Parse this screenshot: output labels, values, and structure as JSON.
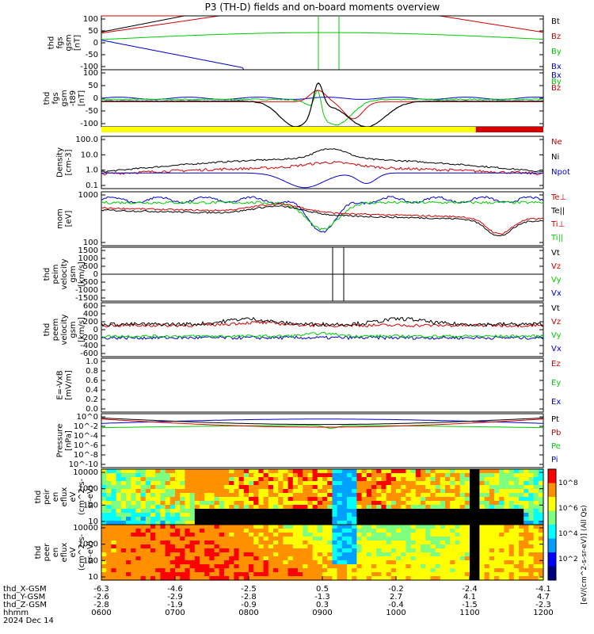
{
  "title": "P3 (TH-D) fields and on-board moments overview",
  "date_label": "2024 Dec 14",
  "colors": {
    "black": "#000000",
    "red": "#d40000",
    "green": "#00cc00",
    "blue": "#0000cc",
    "yellow": "#ffff00"
  },
  "ephemeris": {
    "rows": [
      {
        "name": "thd_X-GSM",
        "values": [
          "-6.3",
          "-4.6",
          "-2.5",
          "0.5",
          "-0.2",
          "-2.4",
          "-4.1"
        ]
      },
      {
        "name": "thd_Y-GSM",
        "values": [
          "-2.6",
          "-2.9",
          "-2.8",
          "-1.3",
          "2.7",
          "4.1",
          "4.7"
        ]
      },
      {
        "name": "thd_Z-GSM",
        "values": [
          "-2.8",
          "-1.9",
          "-0.9",
          "0.3",
          "-0.4",
          "-1.5",
          "-2.3"
        ]
      },
      {
        "name": "hhmm",
        "values": [
          "0600",
          "0700",
          "0800",
          "0900",
          "1000",
          "1100",
          "1200"
        ]
      }
    ]
  },
  "chart_data": [
    {
      "type": "line",
      "id": "fgs",
      "ylabel": [
        "thd",
        "fgs",
        "gsm",
        "[nT]"
      ],
      "ylim": [
        -100,
        100
      ],
      "yticks": [
        "100",
        "50",
        "0",
        "-50",
        "-100"
      ],
      "series": [
        {
          "name": "Bt",
          "color": "black"
        },
        {
          "name": "Bz",
          "color": "red"
        },
        {
          "name": "By",
          "color": "green"
        },
        {
          "name": "Bx",
          "color": "blue"
        }
      ]
    },
    {
      "type": "line",
      "id": "fgs_t89",
      "ylabel": [
        "thd",
        "fgs",
        "gsm",
        "-t89",
        "[nT]"
      ],
      "ylim": [
        -120,
        120
      ],
      "yticks": [
        "100",
        "50",
        "0",
        "-50",
        "-100"
      ],
      "series": [
        {
          "name": "Bx",
          "color": "blue"
        },
        {
          "name": "By",
          "color": "green"
        },
        {
          "name": "Bz",
          "color": "red"
        }
      ]
    },
    {
      "type": "bar",
      "id": "flag",
      "segments": [
        {
          "from": "0600",
          "to": "1105",
          "color": "yellow"
        },
        {
          "from": "1105",
          "to": "1200",
          "color": "red"
        }
      ]
    },
    {
      "type": "line",
      "id": "density",
      "ylabel": [
        "Density",
        "[cm-3]"
      ],
      "log": true,
      "ylim": [
        0.05,
        100
      ],
      "yticks": [
        "100.0",
        "10.0",
        "1.0",
        "0.1"
      ],
      "series": [
        {
          "name": "Ne",
          "color": "red"
        },
        {
          "name": "Ni",
          "color": "black"
        },
        {
          "name": "Npot",
          "color": "blue"
        }
      ]
    },
    {
      "type": "line",
      "id": "temperature",
      "ylabel": [
        "mom",
        "[eV]"
      ],
      "log": true,
      "ylim": [
        20,
        5000
      ],
      "yticks": [
        "1000",
        "100"
      ],
      "series": [
        {
          "name": "Te⊥",
          "color": "red"
        },
        {
          "name": "Te||",
          "color": "black"
        },
        {
          "name": "Ti⊥",
          "color": "red"
        },
        {
          "name": "Ti||",
          "color": "green"
        }
      ]
    },
    {
      "type": "line",
      "id": "peim_velocity",
      "ylabel": [
        "thd",
        "peim",
        "velocity",
        "gsm",
        "[km/s]"
      ],
      "ylim": [
        -2000,
        1500
      ],
      "yticks": [
        "1500",
        "1000",
        "500",
        "0",
        "-500",
        "-1000",
        "-1500"
      ],
      "series": [
        {
          "name": "Vt",
          "color": "black"
        },
        {
          "name": "Vz",
          "color": "red"
        },
        {
          "name": "Vy",
          "color": "green"
        },
        {
          "name": "Vx",
          "color": "blue"
        }
      ]
    },
    {
      "type": "line",
      "id": "peem_velocity",
      "ylabel": [
        "thd",
        "peem",
        "velocity",
        "gsm",
        "[km/s]"
      ],
      "ylim": [
        -600,
        600
      ],
      "yticks": [
        "600",
        "400",
        "200",
        "0",
        "-200",
        "-400",
        "-600"
      ],
      "series": [
        {
          "name": "Vt",
          "color": "black"
        },
        {
          "name": "Vz",
          "color": "red"
        },
        {
          "name": "Vy",
          "color": "green"
        },
        {
          "name": "Vx",
          "color": "blue"
        }
      ]
    },
    {
      "type": "line",
      "id": "efield",
      "ylabel": [
        "E=-VxB",
        "[mV/m]"
      ],
      "ylim": [
        0,
        1
      ],
      "yticks": [
        "1.0",
        "0.8",
        "0.6",
        "0.4",
        "0.2",
        "0.0"
      ],
      "series": [
        {
          "name": "Ez",
          "color": "red"
        },
        {
          "name": "Ey",
          "color": "green"
        },
        {
          "name": "Ex",
          "color": "blue"
        }
      ]
    },
    {
      "type": "line",
      "id": "pressure",
      "ylabel": [
        "Pressure",
        "[nPa]"
      ],
      "log": true,
      "ylim": [
        1e-10,
        10
      ],
      "yticks": [
        "10^0",
        "10^-2",
        "10^-4",
        "10^-6",
        "10^-8",
        "10^-10"
      ],
      "series": [
        {
          "name": "Pt",
          "color": "black"
        },
        {
          "name": "Pb",
          "color": "red"
        },
        {
          "name": "Pe",
          "color": "green"
        },
        {
          "name": "Pi",
          "color": "blue"
        }
      ]
    },
    {
      "type": "heatmap",
      "id": "peir",
      "ylabel": [
        "thd",
        "peir",
        "en",
        "eflux",
        "eV",
        "(cm^2-s-",
        "sr-eV)"
      ],
      "log": true,
      "ylim": [
        5,
        30000
      ],
      "yticks": [
        "10000",
        "1000",
        "100",
        "10"
      ]
    },
    {
      "type": "heatmap",
      "id": "peer",
      "ylabel": [
        "thd",
        "peer",
        "en",
        "eflux",
        "eV",
        "(cm^2-s-",
        "sr-eV)"
      ],
      "log": true,
      "ylim": [
        5,
        30000
      ],
      "yticks": [
        "10000",
        "1000",
        "100",
        "10"
      ]
    }
  ],
  "colorbar": {
    "ticks": [
      "10^8",
      "10^6",
      "10^4",
      "10^2"
    ],
    "label": "[eV/(cm^2-s-sr-eV)] (All Qs)"
  }
}
